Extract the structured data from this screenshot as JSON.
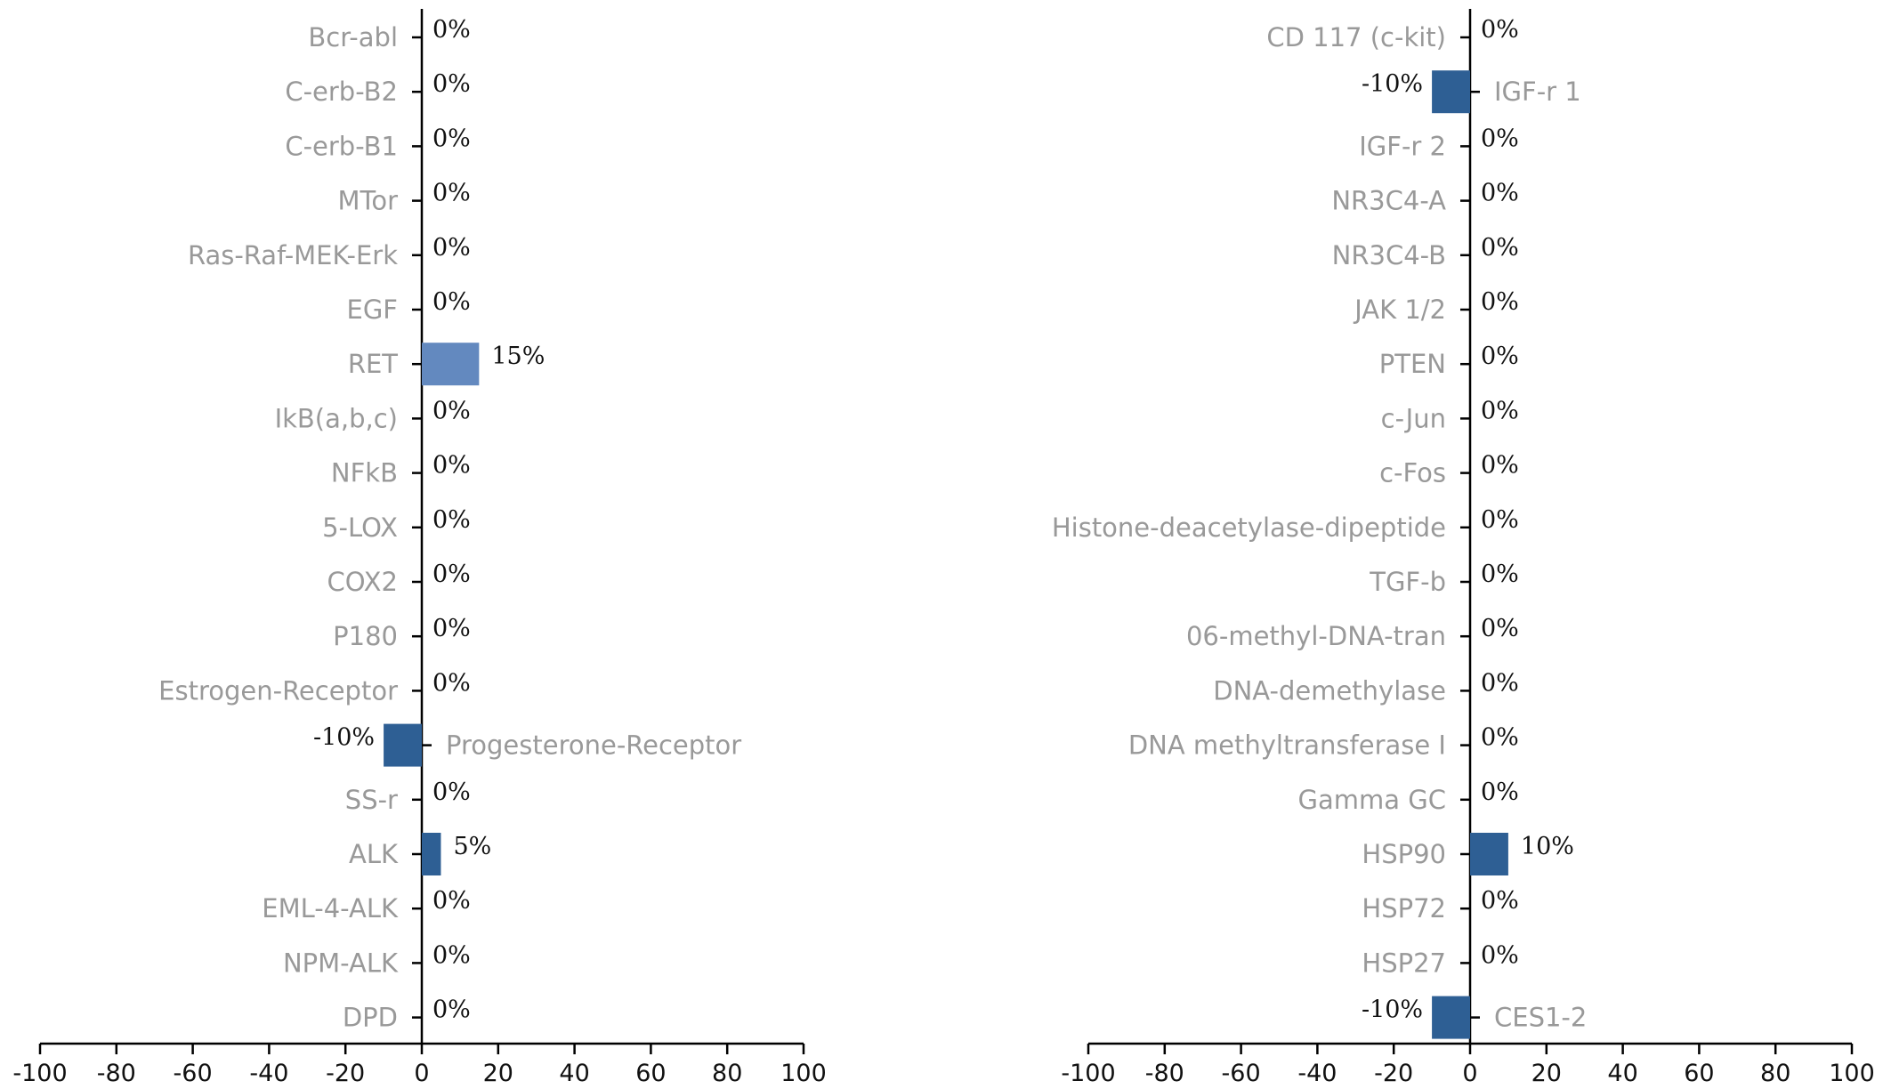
{
  "chart_data": [
    {
      "type": "bar",
      "orientation": "horizontal",
      "xlim": [
        -100,
        100
      ],
      "xticks": [
        -100,
        -80,
        -60,
        -40,
        -20,
        0,
        20,
        40,
        60,
        80,
        100
      ],
      "grid": false,
      "legend": "none",
      "categories": [
        "Bcr-abl",
        "C-erb-B2",
        "C-erb-B1",
        "MTor",
        "Ras-Raf-MEK-Erk",
        "EGF",
        "RET",
        "IkB(a,b,c)",
        "NFkB",
        "5-LOX",
        "COX2",
        "P180",
        "Estrogen-Receptor",
        "Progesterone-Receptor",
        "SS-r",
        "ALK",
        "EML-4-ALK",
        "NPM-ALK",
        "DPD"
      ],
      "values": [
        0,
        0,
        0,
        0,
        0,
        0,
        15,
        0,
        0,
        0,
        0,
        0,
        0,
        -10,
        0,
        5,
        0,
        0,
        0
      ],
      "value_labels": [
        "0%",
        "0%",
        "0%",
        "0%",
        "0%",
        "0%",
        "15%",
        "0%",
        "0%",
        "0%",
        "0%",
        "0%",
        "0%",
        "-10%",
        "0%",
        "5%",
        "0%",
        "0%",
        "0%"
      ],
      "bar_colors": [
        "#2e5f94",
        "#2e5f94",
        "#2e5f94",
        "#2e5f94",
        "#2e5f94",
        "#2e5f94",
        "#6389bf",
        "#2e5f94",
        "#2e5f94",
        "#2e5f94",
        "#2e5f94",
        "#2e5f94",
        "#2e5f94",
        "#2e5f94",
        "#2e5f94",
        "#2e5f94",
        "#2e5f94",
        "#2e5f94",
        "#2e5f94"
      ]
    },
    {
      "type": "bar",
      "orientation": "horizontal",
      "xlim": [
        -100,
        100
      ],
      "xticks": [
        -100,
        -80,
        -60,
        -40,
        -20,
        0,
        20,
        40,
        60,
        80,
        100
      ],
      "grid": false,
      "legend": "none",
      "categories": [
        "CD 117 (c-kit)",
        "IGF-r 1",
        "IGF-r 2",
        "NR3C4-A",
        "NR3C4-B",
        "JAK 1/2",
        "PTEN",
        "c-Jun",
        "c-Fos",
        "Histone-deacetylase-dipeptide",
        "TGF-b",
        "06-methyl-DNA-tran",
        "DNA-demethylase",
        "DNA methyltransferase I",
        "Gamma GC",
        "HSP90",
        "HSP72",
        "HSP27",
        "CES1-2"
      ],
      "values": [
        0,
        -10,
        0,
        0,
        0,
        0,
        0,
        0,
        0,
        0,
        0,
        0,
        0,
        0,
        0,
        10,
        0,
        0,
        -10
      ],
      "value_labels": [
        "0%",
        "-10%",
        "0%",
        "0%",
        "0%",
        "0%",
        "0%",
        "0%",
        "0%",
        "0%",
        "0%",
        "0%",
        "0%",
        "0%",
        "0%",
        "10%",
        "0%",
        "0%",
        "-10%"
      ],
      "bar_colors": [
        "#2e5f94",
        "#2e5f94",
        "#2e5f94",
        "#2e5f94",
        "#2e5f94",
        "#2e5f94",
        "#2e5f94",
        "#2e5f94",
        "#2e5f94",
        "#2e5f94",
        "#2e5f94",
        "#2e5f94",
        "#2e5f94",
        "#2e5f94",
        "#2e5f94",
        "#2e5f94",
        "#2e5f94",
        "#2e5f94",
        "#2e5f94"
      ]
    }
  ]
}
